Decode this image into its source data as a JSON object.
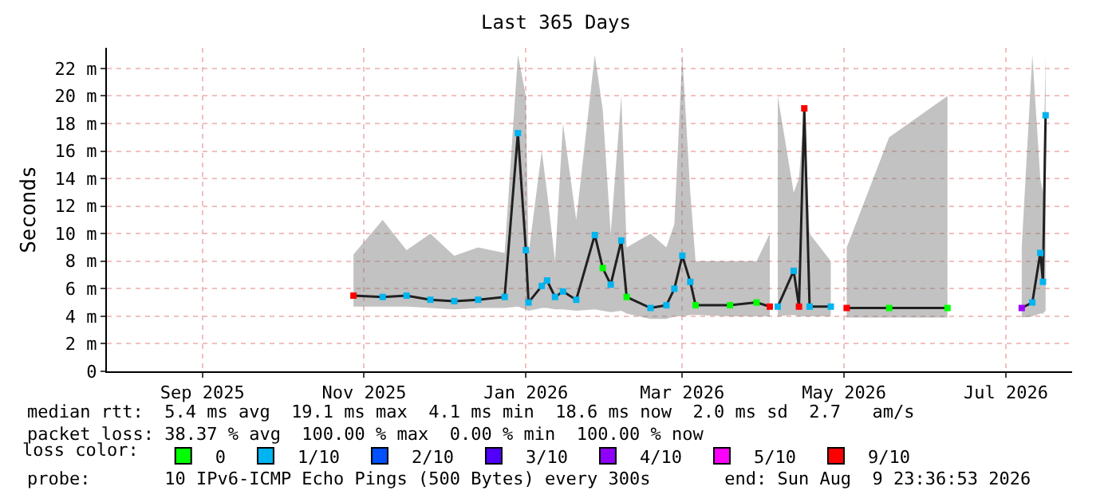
{
  "chart_data": {
    "type": "line",
    "title": "Last 365 Days",
    "ylabel": "Seconds",
    "x": [
      "2025-11-11",
      "2025-11-22",
      "2025-12-01",
      "2025-12-10",
      "2025-12-19",
      "2025-12-28",
      "2026-01-07",
      "2026-01-12",
      "2026-01-15",
      "2026-01-16",
      "2026-01-21",
      "2026-01-23",
      "2026-01-26",
      "2026-01-29",
      "2026-02-03",
      "2026-02-10",
      "2026-02-13",
      "2026-02-16",
      "2026-02-20",
      "2026-02-22",
      "2026-03-03",
      "2026-03-09",
      "2026-03-12",
      "2026-03-15",
      "2026-03-18",
      "2026-03-20",
      "2026-04-02",
      "2026-04-12",
      "2026-04-17",
      "2026-04-19",
      "2026-04-20",
      "2026-04-26",
      "2026-04-28",
      "2026-04-30",
      "2026-05-02",
      "2026-05-10",
      "2026-05-14",
      "2026-05-16",
      "2026-06-01",
      "2026-06-23",
      "2026-07-01",
      "2026-07-21",
      "2026-07-25",
      "2026-07-28",
      "2026-07-29",
      "2026-07-30"
    ],
    "series": [
      {
        "color": "#202020",
        "values": [
          5.5,
          5.4,
          5.5,
          5.2,
          5.1,
          5.2,
          5.4,
          17.3,
          8.8,
          5.0,
          6.2,
          6.6,
          5.4,
          5.8,
          5.2,
          9.9,
          7.5,
          6.3,
          9.5,
          5.4,
          4.6,
          4.8,
          6.0,
          8.4,
          6.5,
          4.8,
          4.8,
          5.0,
          4.7,
          null,
          4.7,
          7.3,
          4.7,
          19.1,
          4.7,
          4.7,
          null,
          4.6,
          4.6,
          4.6,
          null,
          4.6,
          5.0,
          8.6,
          6.5,
          18.6
        ],
        "colors": [
          "#ff0000",
          "#00b4f0",
          "#00b4f0",
          "#00b4f0",
          "#00b4f0",
          "#00b4f0",
          "#00b4f0",
          "#00b4f0",
          "#00b4f0",
          "#00b4f0",
          "#00b4f0",
          "#00b4f0",
          "#00b4f0",
          "#00b4f0",
          "#00b4f0",
          "#00b4f0",
          "#00ff00",
          "#00b4f0",
          "#00b4f0",
          "#00ff00",
          "#00b4f0",
          "#00b4f0",
          "#00b4f0",
          "#00b4f0",
          "#00b4f0",
          "#00ff00",
          "#00ff00",
          "#00ff00",
          "#ff0000",
          "#00b4f0",
          "#00b4f0",
          "#00b4f0",
          "#ff0000",
          "#ff0000",
          "#00b4f0",
          "#00b4f0",
          "#00b4f0",
          "#ff0000",
          "#00ff00",
          "#00ff00",
          "#00b4f0",
          "#a000ff",
          "#00b4f0",
          "#00b4f0",
          "#00b4f0",
          "#00b4f0"
        ],
        "lower": [
          4.7,
          4.7,
          4.7,
          4.6,
          4.5,
          4.6,
          4.6,
          4.7,
          4.5,
          4.4,
          4.6,
          4.6,
          4.5,
          4.5,
          4.4,
          4.5,
          4.4,
          4.3,
          4.4,
          4.2,
          3.8,
          3.8,
          4.0,
          4.0,
          4.1,
          4.1,
          4.0,
          4.0,
          4.0,
          null,
          4.0,
          4.1,
          4.0,
          4.0,
          4.0,
          4.0,
          null,
          3.9,
          3.9,
          3.9,
          null,
          3.9,
          4.0,
          4.2,
          4.2,
          4.4
        ],
        "upper": [
          8.5,
          11.0,
          8.8,
          10.0,
          8.4,
          9.0,
          8.6,
          23.0,
          20.0,
          8.5,
          16.0,
          13.0,
          8.0,
          18.0,
          11.0,
          23.0,
          19.0,
          10.0,
          20.0,
          9.0,
          10.0,
          9.0,
          10.7,
          23.0,
          13.0,
          8.0,
          8.0,
          8.0,
          10.0,
          null,
          20.0,
          13.0,
          14.0,
          19.0,
          10.0,
          8.0,
          null,
          9.0,
          17.0,
          20.0,
          null,
          9.0,
          23.0,
          14.0,
          13.0,
          23.0
        ]
      },
      {
        "name": "0",
        "color": "#00ff00",
        "type": "scatter",
        "values": [
          null,
          null,
          null,
          null,
          null,
          null,
          null,
          null,
          null,
          null,
          null,
          null,
          null,
          null,
          null,
          null,
          null,
          null,
          null,
          null,
          null,
          null,
          null,
          null,
          null,
          null,
          null,
          null,
          null,
          null,
          null,
          null,
          null,
          null,
          null,
          null,
          null,
          null,
          null,
          null,
          null,
          null,
          null,
          null,
          null,
          null
        ]
      },
      {
        "name": "1/10",
        "color": "#00b4f0",
        "type": "scatter",
        "values": [
          null,
          null,
          null,
          null,
          null,
          null,
          null,
          null,
          null,
          null,
          null,
          null,
          null,
          null,
          null,
          null,
          null,
          null,
          null,
          null,
          null,
          null,
          null,
          null,
          null,
          null,
          null,
          null,
          null,
          null,
          null,
          null,
          null,
          null,
          null,
          null,
          null,
          null,
          null,
          null,
          null,
          null,
          null,
          null,
          null,
          null
        ]
      },
      {
        "name": "2/10",
        "color": "#0050ff",
        "type": "scatter",
        "values": [
          null,
          null,
          null,
          null,
          null,
          null,
          null,
          null,
          null,
          null,
          null,
          null,
          null,
          null,
          null,
          null,
          null,
          null,
          null,
          null,
          null,
          null,
          null,
          null,
          null,
          null,
          null,
          null,
          null,
          null,
          null,
          null,
          null,
          null,
          null,
          null,
          null,
          null,
          null,
          null,
          null,
          null,
          null,
          null,
          null,
          null
        ]
      },
      {
        "name": "3/10",
        "color": "#5000ff",
        "type": "scatter",
        "values": [
          null,
          null,
          null,
          null,
          null,
          null,
          null,
          null,
          null,
          null,
          null,
          null,
          null,
          null,
          null,
          null,
          null,
          null,
          null,
          null,
          null,
          null,
          null,
          null,
          null,
          null,
          null,
          null,
          null,
          null,
          null,
          null,
          null,
          null,
          null,
          null,
          null,
          null,
          null,
          null,
          null,
          null,
          null,
          null,
          null,
          null
        ]
      },
      {
        "name": "4/10",
        "color": "#9000ff",
        "type": "scatter",
        "values": [
          null,
          null,
          null,
          null,
          null,
          null,
          null,
          null,
          null,
          null,
          null,
          null,
          null,
          null,
          null,
          null,
          null,
          null,
          null,
          null,
          null,
          null,
          null,
          null,
          null,
          null,
          null,
          null,
          null,
          null,
          null,
          null,
          null,
          null,
          null,
          null,
          null,
          null,
          null,
          null,
          null,
          null,
          null,
          null,
          null,
          null
        ]
      },
      {
        "name": "5/10",
        "color": "#ff00ff",
        "type": "scatter",
        "values": [
          null,
          null,
          null,
          null,
          null,
          null,
          null,
          null,
          null,
          null,
          null,
          null,
          null,
          null,
          null,
          null,
          null,
          null,
          null,
          null,
          null,
          null,
          null,
          null,
          null,
          null,
          null,
          null,
          null,
          null,
          null,
          null,
          null,
          null,
          null,
          null,
          null,
          null,
          null,
          null,
          null,
          null,
          null,
          null,
          null,
          null
        ]
      },
      {
        "name": "9/10",
        "color": "#ff0000",
        "type": "scatter",
        "values": [
          null,
          null,
          null,
          null,
          null,
          null,
          null,
          null,
          null,
          null,
          null,
          null,
          null,
          null,
          null,
          null,
          null,
          null,
          null,
          null,
          null,
          null,
          null,
          null,
          null,
          null,
          null,
          null,
          null,
          null,
          null,
          null,
          null,
          null,
          null,
          null,
          null,
          null,
          null,
          null,
          null,
          null,
          null,
          null,
          null,
          null
        ]
      }
    ],
    "legend_title": "loss color:",
    "legend": "bottom",
    "marker": "square",
    "grid": true,
    "xlim": [
      "2025-08-10",
      "2026-08-09"
    ],
    "xticks": [
      {
        "value": "2025-09-15",
        "label": "Sep 2025"
      },
      {
        "value": "2025-11-15",
        "label": "Nov 2025"
      },
      {
        "value": "2026-01-15",
        "label": "Jan 2026"
      },
      {
        "value": "2026-03-15",
        "label": "Mar 2026"
      },
      {
        "value": "2026-05-15",
        "label": "May 2026"
      },
      {
        "value": "2026-07-15",
        "label": "Jul 2026"
      }
    ],
    "ylim": [
      0,
      23.5
    ],
    "yticks": [
      0,
      {
        "value": 2,
        "label": "2 m"
      },
      {
        "value": 4,
        "label": "4 m"
      },
      {
        "value": 6,
        "label": "6 m"
      },
      {
        "value": 8,
        "label": "8 m"
      },
      {
        "value": 10,
        "label": "10 m"
      },
      {
        "value": 12,
        "label": "12 m"
      },
      {
        "value": 14,
        "label": "14 m"
      },
      {
        "value": 16,
        "label": "16 m"
      },
      {
        "value": 18,
        "label": "18 m"
      },
      {
        "value": 20,
        "label": "20 m"
      },
      {
        "value": 22,
        "label": "22 m"
      }
    ],
    "annotations": [
      "median rtt:  5.4 ms avg  19.1 ms max  4.1 ms min  18.6 ms now  2.0 ms sd  2.7   am/s",
      "packet loss: 38.37 % avg  100.00 % max  0.00 % min  100.00 % now",
      "probe:       10 IPv6-ICMP Echo Pings (500 Bytes) every 300s       end: Sun Aug  9 23:36:53 2026"
    ]
  }
}
